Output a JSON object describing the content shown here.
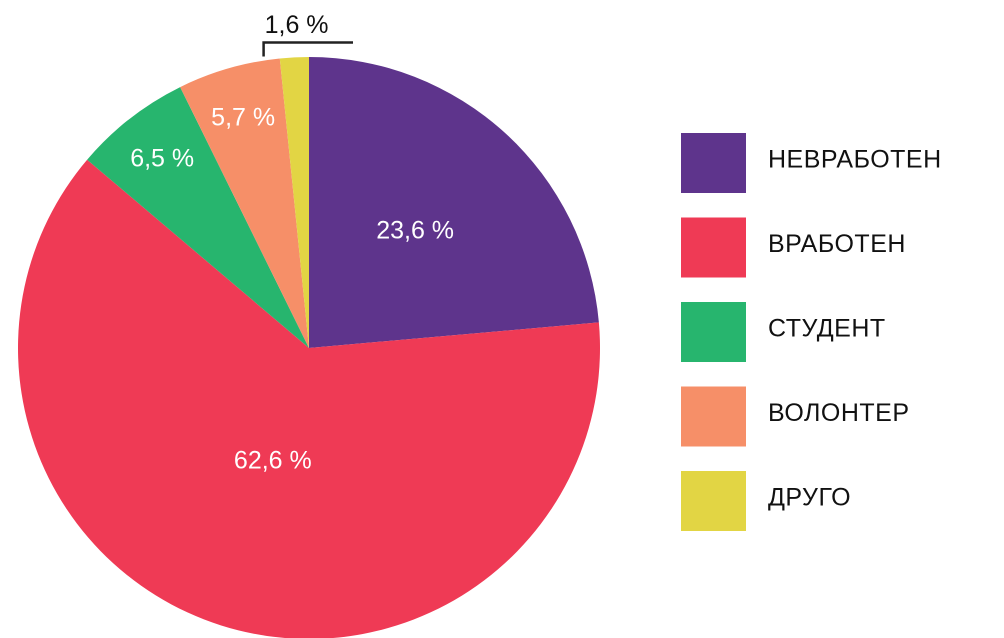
{
  "chart_data": {
    "type": "pie",
    "categories": [
      "НЕВРАБОТЕН",
      "ВРАБОТЕН",
      "СТУДЕНТ",
      "ВОЛОНТЕР",
      "ДРУГО"
    ],
    "values": [
      23.6,
      62.6,
      6.5,
      5.7,
      1.6
    ],
    "value_labels": [
      "23,6 %",
      "62,6 %",
      "6,5 %",
      "5,7 %",
      "1,6 %"
    ],
    "colors": [
      "#5e348c",
      "#ef3a55",
      "#27b56e",
      "#f68f68",
      "#e2d544"
    ],
    "legend": "right"
  }
}
